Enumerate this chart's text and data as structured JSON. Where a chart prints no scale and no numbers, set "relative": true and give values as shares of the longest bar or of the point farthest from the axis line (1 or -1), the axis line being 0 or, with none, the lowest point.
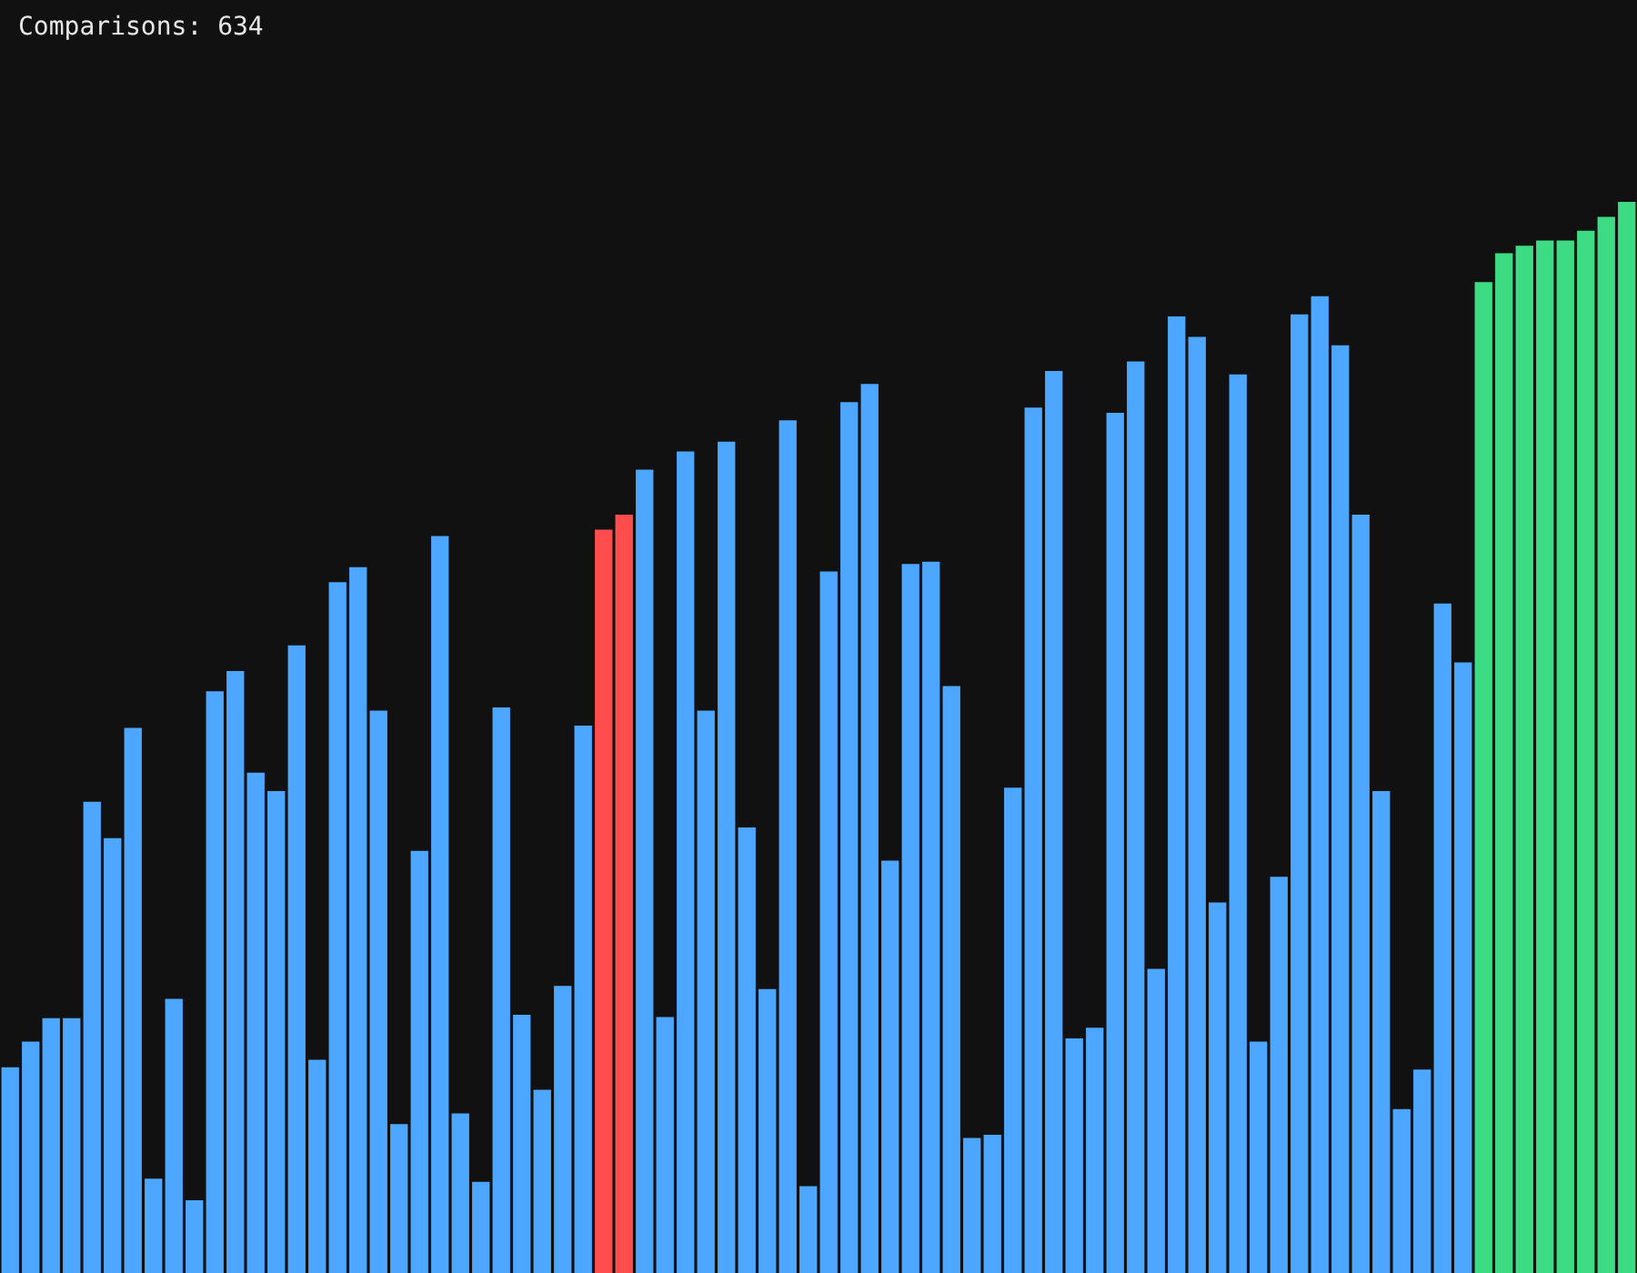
{
  "chart_data": {
    "type": "bar",
    "title": "Comparisons: 634",
    "relative": true,
    "categories": [
      null,
      null,
      null,
      null,
      null,
      null,
      null,
      null,
      null,
      null,
      null,
      null,
      null,
      null,
      null,
      null,
      null,
      null,
      null,
      null,
      null,
      null,
      null,
      null,
      null,
      null,
      null,
      null,
      null,
      null,
      null,
      null,
      null,
      null,
      null,
      null,
      null,
      null,
      null,
      null,
      null,
      null,
      null,
      null,
      null,
      null,
      null,
      null,
      null,
      null,
      null,
      null,
      null,
      null,
      null,
      null,
      null,
      null,
      null,
      null,
      null,
      null,
      null,
      null,
      null,
      null,
      null,
      null,
      null,
      null,
      null,
      null,
      null,
      null,
      null,
      null,
      null,
      null,
      null,
      null
    ],
    "values": [
      0.192,
      0.216,
      0.238,
      0.238,
      0.44,
      0.406,
      0.509,
      0.088,
      0.256,
      0.068,
      0.543,
      0.562,
      0.467,
      0.45,
      0.586,
      0.199,
      0.645,
      0.659,
      0.525,
      0.139,
      0.394,
      0.688,
      0.149,
      0.085,
      0.528,
      0.241,
      0.171,
      0.268,
      0.511,
      0.694,
      0.708,
      0.75,
      0.239,
      0.767,
      0.525,
      0.776,
      0.416,
      0.265,
      0.796,
      0.081,
      0.655,
      0.813,
      0.83,
      0.385,
      0.662,
      0.664,
      0.548,
      0.126,
      0.129,
      0.453,
      0.808,
      0.842,
      0.219,
      0.229,
      0.803,
      0.851,
      0.284,
      0.893,
      0.874,
      0.346,
      0.839,
      0.216,
      0.37,
      0.895,
      0.912,
      0.866,
      0.708,
      0.45,
      0.153,
      0.19,
      0.625,
      0.57,
      0.925,
      0.952,
      0.959,
      0.964,
      0.964,
      0.973,
      0.986,
      1
    ],
    "colors": [
      "#4da6ff",
      "#4da6ff",
      "#4da6ff",
      "#4da6ff",
      "#4da6ff",
      "#4da6ff",
      "#4da6ff",
      "#4da6ff",
      "#4da6ff",
      "#4da6ff",
      "#4da6ff",
      "#4da6ff",
      "#4da6ff",
      "#4da6ff",
      "#4da6ff",
      "#4da6ff",
      "#4da6ff",
      "#4da6ff",
      "#4da6ff",
      "#4da6ff",
      "#4da6ff",
      "#4da6ff",
      "#4da6ff",
      "#4da6ff",
      "#4da6ff",
      "#4da6ff",
      "#4da6ff",
      "#4da6ff",
      "#4da6ff",
      "#ff4d4d",
      "#ff4d4d",
      "#4da6ff",
      "#4da6ff",
      "#4da6ff",
      "#4da6ff",
      "#4da6ff",
      "#4da6ff",
      "#4da6ff",
      "#4da6ff",
      "#4da6ff",
      "#4da6ff",
      "#4da6ff",
      "#4da6ff",
      "#4da6ff",
      "#4da6ff",
      "#4da6ff",
      "#4da6ff",
      "#4da6ff",
      "#4da6ff",
      "#4da6ff",
      "#4da6ff",
      "#4da6ff",
      "#4da6ff",
      "#4da6ff",
      "#4da6ff",
      "#4da6ff",
      "#4da6ff",
      "#4da6ff",
      "#4da6ff",
      "#4da6ff",
      "#4da6ff",
      "#4da6ff",
      "#4da6ff",
      "#4da6ff",
      "#4da6ff",
      "#4da6ff",
      "#4da6ff",
      "#4da6ff",
      "#4da6ff",
      "#4da6ff",
      "#4da6ff",
      "#4da6ff",
      "#3ddc84",
      "#3ddc84",
      "#3ddc84",
      "#3ddc84",
      "#3ddc84",
      "#3ddc84",
      "#3ddc84",
      "#3ddc84"
    ]
  }
}
